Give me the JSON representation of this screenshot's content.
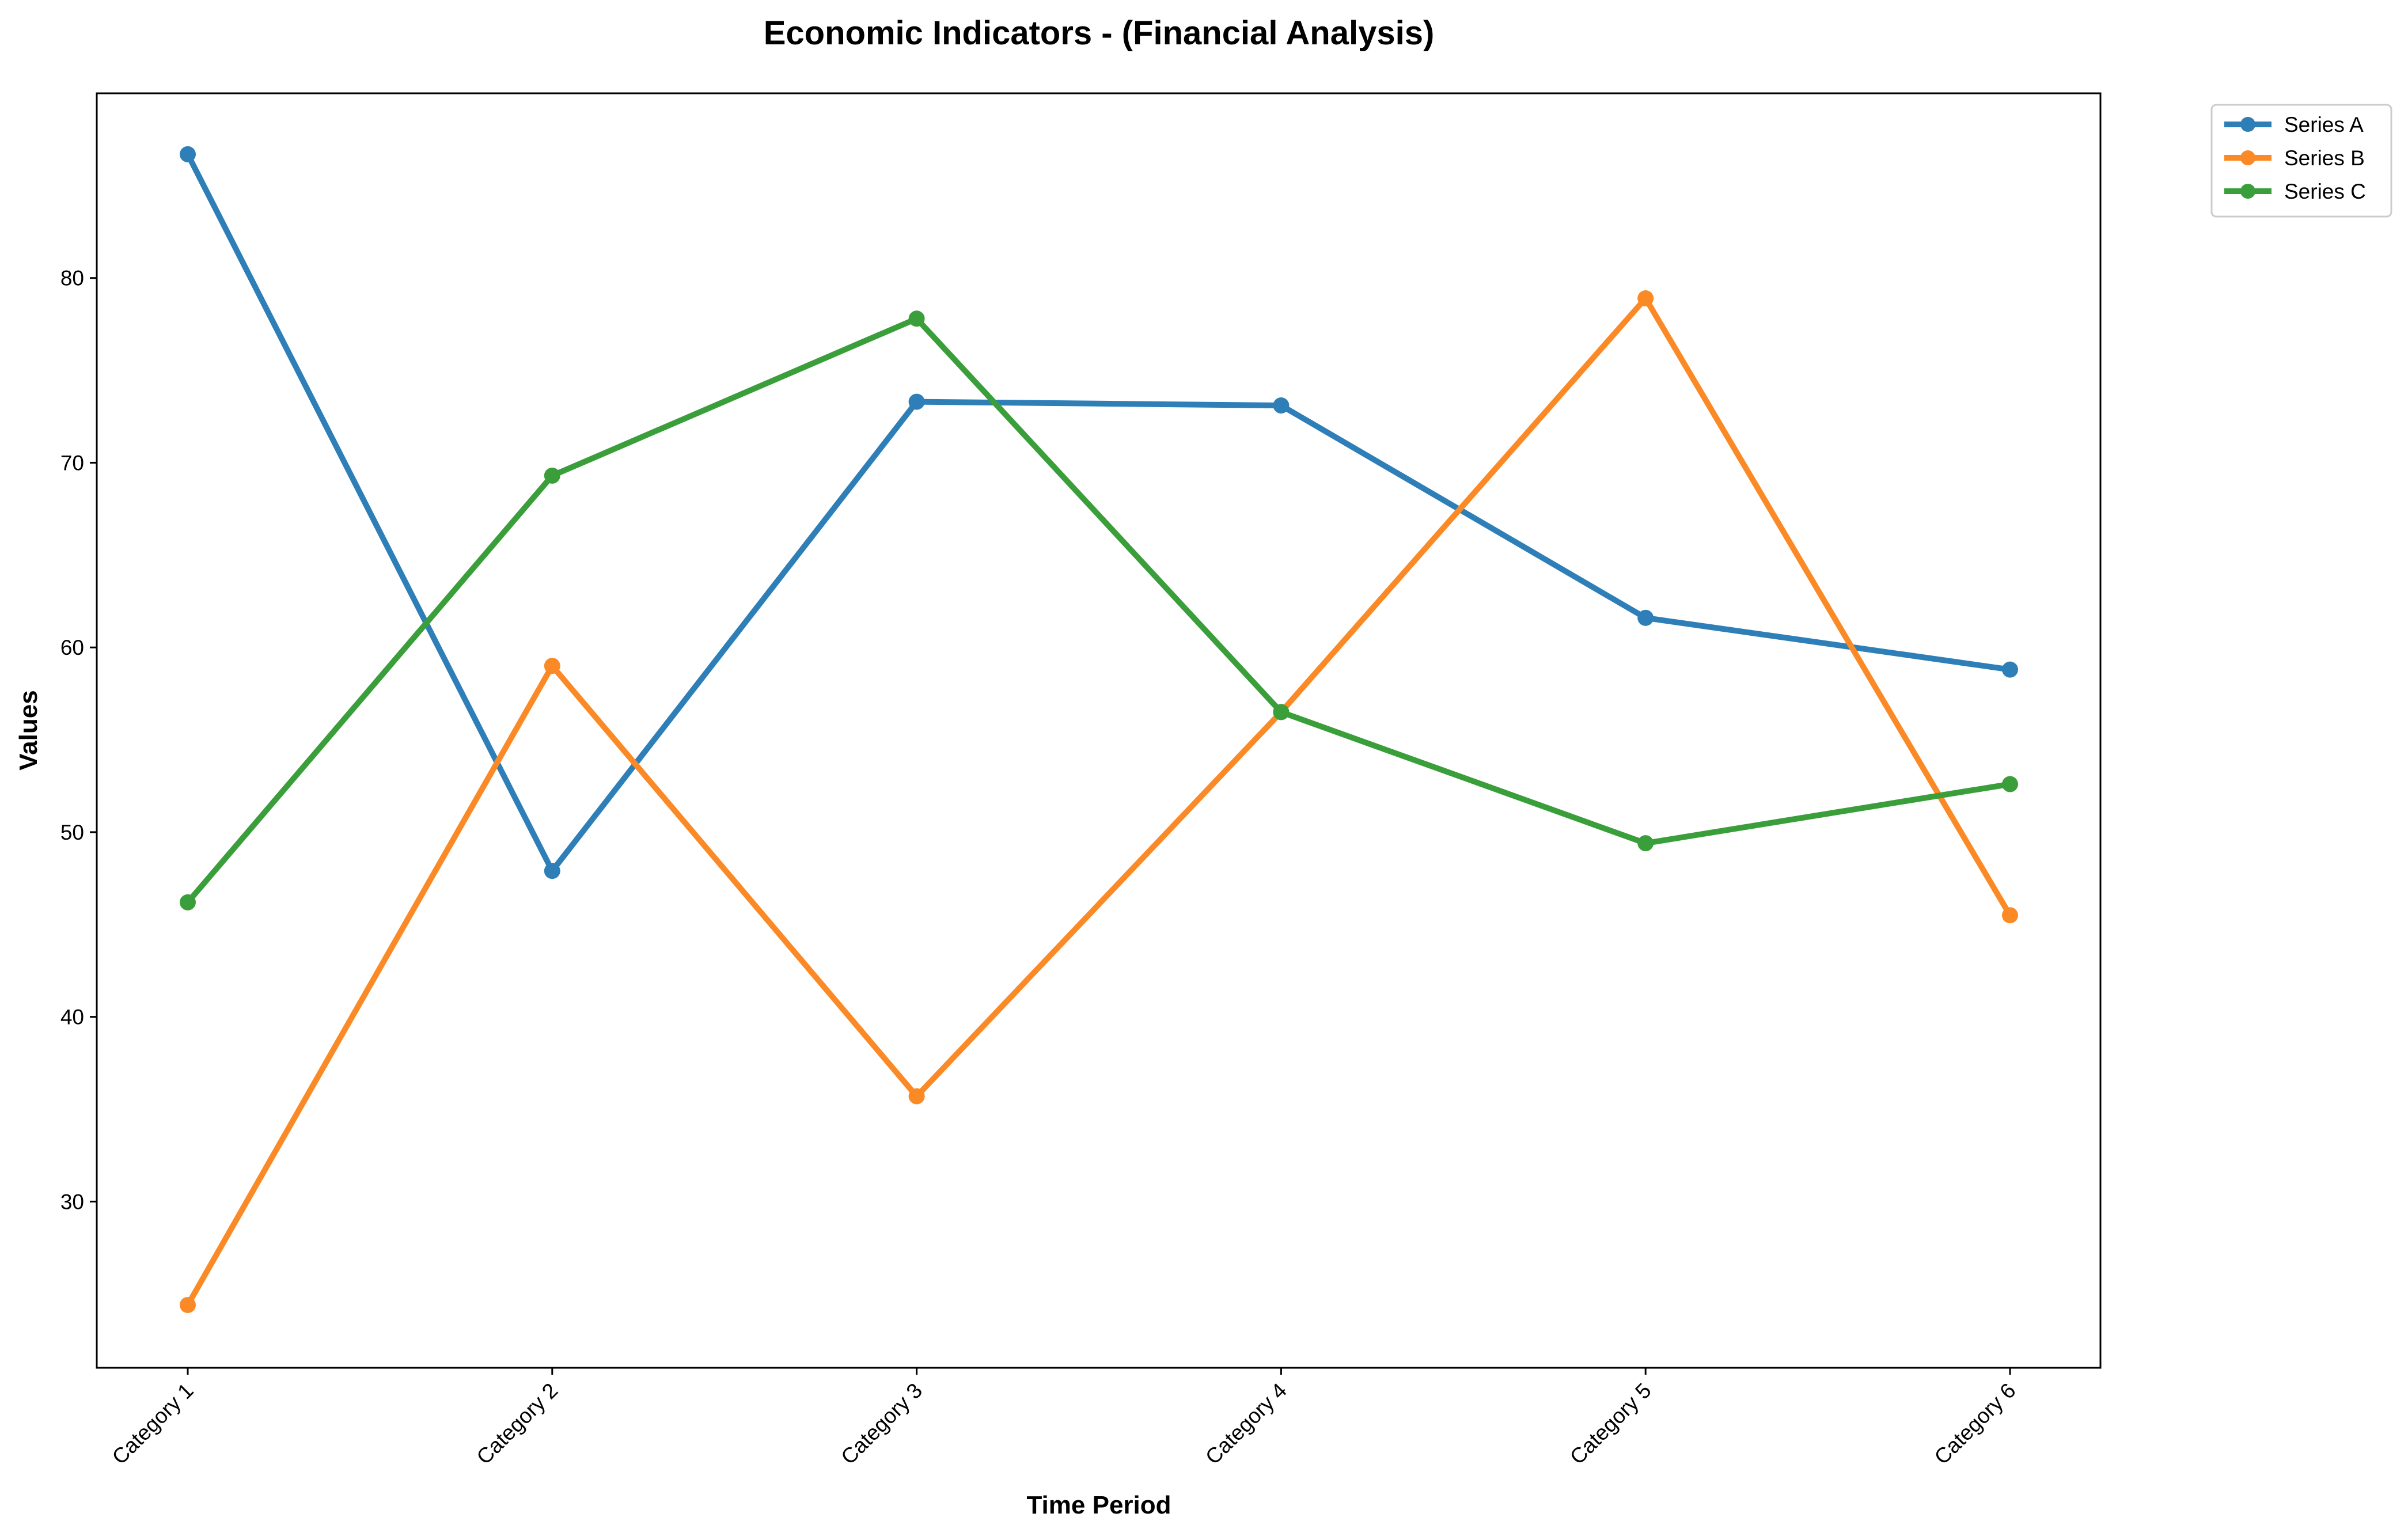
{
  "chart_data": {
    "type": "line",
    "title": "Economic Indicators - (Financial Analysis)",
    "xlabel": "Time Period",
    "ylabel": "Values",
    "categories": [
      "Category 1",
      "Category 2",
      "Category 3",
      "Category 4",
      "Category 5",
      "Category 6"
    ],
    "ylim": [
      21,
      90
    ],
    "yticks": [
      30,
      40,
      50,
      60,
      70,
      80
    ],
    "grid": false,
    "legend_position": "top-right (outside plot)",
    "series": [
      {
        "name": "Series A",
        "color": "#2e7fb8",
        "values": [
          86.7,
          47.9,
          73.3,
          73.1,
          61.6,
          58.8
        ]
      },
      {
        "name": "Series B",
        "color": "#fb8a26",
        "values": [
          24.4,
          59.0,
          35.7,
          56.5,
          78.9,
          45.5
        ]
      },
      {
        "name": "Series C",
        "color": "#3a9f3a",
        "values": [
          46.2,
          69.3,
          77.8,
          56.5,
          49.4,
          52.6
        ]
      }
    ]
  }
}
